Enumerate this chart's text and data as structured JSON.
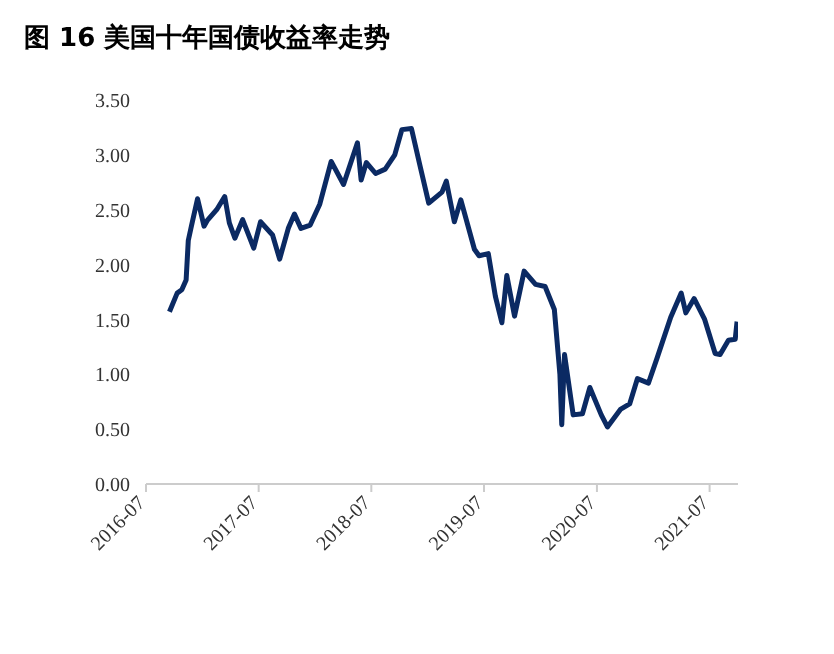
{
  "chart_data": {
    "type": "line",
    "title": "图 16 美国十年国债收益率走势",
    "x": [
      "2016-09-15",
      "2016-10-10",
      "2016-10-25",
      "2016-11-08",
      "2016-11-15",
      "2016-11-25",
      "2016-12-15",
      "2017-01-05",
      "2017-01-15",
      "2017-02-15",
      "2017-03-13",
      "2017-03-28",
      "2017-04-15",
      "2017-05-10",
      "2017-06-15",
      "2017-07-07",
      "2017-08-15",
      "2017-09-07",
      "2017-10-05",
      "2017-10-25",
      "2017-11-15",
      "2017-12-15",
      "2018-01-15",
      "2018-02-21",
      "2018-04-02",
      "2018-05-17",
      "2018-05-29",
      "2018-06-15",
      "2018-07-15",
      "2018-08-15",
      "2018-09-15",
      "2018-10-08",
      "2018-11-08",
      "2018-12-05",
      "2019-01-03",
      "2019-02-15",
      "2019-03-01",
      "2019-03-27",
      "2019-04-17",
      "2019-05-31",
      "2019-06-15",
      "2019-07-15",
      "2019-08-07",
      "2019-08-28",
      "2019-09-13",
      "2019-10-08",
      "2019-11-08",
      "2019-12-15",
      "2020-01-15",
      "2020-02-14",
      "2020-03-03",
      "2020-03-09",
      "2020-03-18",
      "2020-04-15",
      "2020-05-15",
      "2020-06-08",
      "2020-07-15",
      "2020-08-04",
      "2020-09-15",
      "2020-10-15",
      "2020-11-09",
      "2020-12-15",
      "2021-01-12",
      "2021-02-25",
      "2021-03-31",
      "2021-04-15",
      "2021-05-12",
      "2021-06-15",
      "2021-07-19",
      "2021-08-04",
      "2021-08-31",
      "2021-09-22",
      "2021-09-28"
    ],
    "values": [
      1.57,
      1.74,
      1.77,
      1.86,
      2.22,
      2.35,
      2.6,
      2.35,
      2.4,
      2.5,
      2.62,
      2.38,
      2.24,
      2.41,
      2.15,
      2.39,
      2.27,
      2.05,
      2.33,
      2.46,
      2.33,
      2.36,
      2.55,
      2.94,
      2.73,
      3.11,
      2.77,
      2.93,
      2.83,
      2.87,
      3.0,
      3.23,
      3.24,
      2.91,
      2.56,
      2.66,
      2.76,
      2.39,
      2.59,
      2.14,
      2.08,
      2.1,
      1.71,
      1.47,
      1.9,
      1.53,
      1.94,
      1.82,
      1.8,
      1.59,
      1.0,
      0.54,
      1.18,
      0.63,
      0.64,
      0.88,
      0.63,
      0.52,
      0.68,
      0.73,
      0.96,
      0.92,
      1.15,
      1.52,
      1.74,
      1.56,
      1.69,
      1.5,
      1.19,
      1.18,
      1.31,
      1.32,
      1.48
    ],
    "color": "#0b2a63",
    "xlim": [
      "2016-07",
      "2021-10"
    ],
    "xticks": [
      "2016-07",
      "2017-07",
      "2018-07",
      "2019-07",
      "2020-07",
      "2021-07"
    ],
    "ylim": [
      0,
      3.5
    ],
    "yticks": [
      {
        "value": 0,
        "label": "0.00"
      },
      {
        "value": 0.5,
        "label": "0.50"
      },
      {
        "value": 1,
        "label": "1.00"
      },
      {
        "value": 1.5,
        "label": "1.50"
      },
      {
        "value": 2,
        "label": "2.00"
      },
      {
        "value": 2.5,
        "label": "2.50"
      },
      {
        "value": 3,
        "label": "3.00"
      },
      {
        "value": 3.5,
        "label": "3.50"
      }
    ],
    "grid": false
  }
}
